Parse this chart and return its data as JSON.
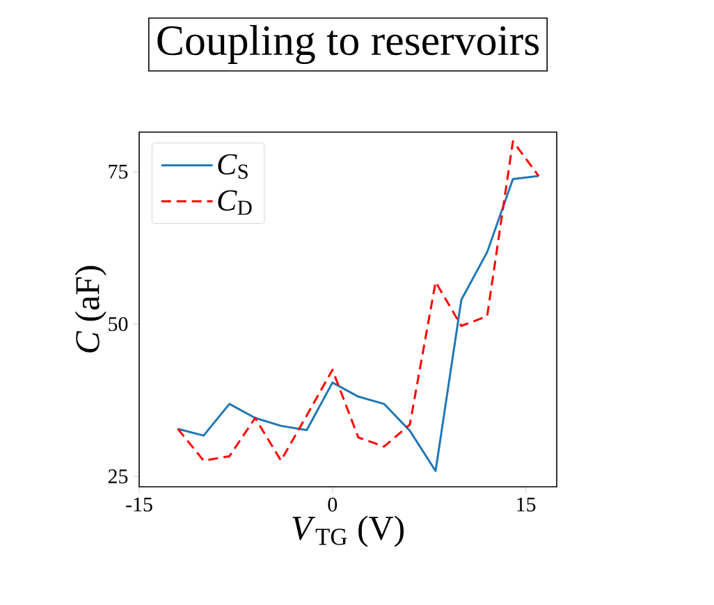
{
  "chart_data": {
    "type": "line",
    "title": "Coupling to reservoirs",
    "xlabel": "*V*$_{TG}$ (V)",
    "ylabel": "*C* (aF)",
    "x": [
      -12,
      -10,
      -8,
      -6,
      -4,
      -2,
      0,
      2,
      4,
      6,
      8,
      10,
      12,
      14,
      16
    ],
    "series": [
      {
        "name": "*C*$_{S}$",
        "color": "#1f77b4",
        "line_style": "solid",
        "values": [
          32.8,
          31.7,
          36.9,
          34.6,
          33.3,
          32.6,
          40.4,
          38.1,
          36.9,
          32.5,
          25.9,
          54.0,
          61.8,
          73.8,
          74.3
        ]
      },
      {
        "name": "*C*$_{D}$",
        "color": "#ff0000",
        "line_style": "dashed",
        "values": [
          32.8,
          27.6,
          28.3,
          34.6,
          27.6,
          35.0,
          42.5,
          31.4,
          29.9,
          33.5,
          56.9,
          49.7,
          51.3,
          80.0,
          74.3
        ]
      }
    ],
    "xlim": [
      -15,
      17.4
    ],
    "ylim": [
      23.3,
      81.5
    ],
    "xticks": [
      -15,
      0,
      15
    ],
    "yticks": [
      25,
      50,
      75
    ],
    "legend": "top left",
    "grid": false
  }
}
